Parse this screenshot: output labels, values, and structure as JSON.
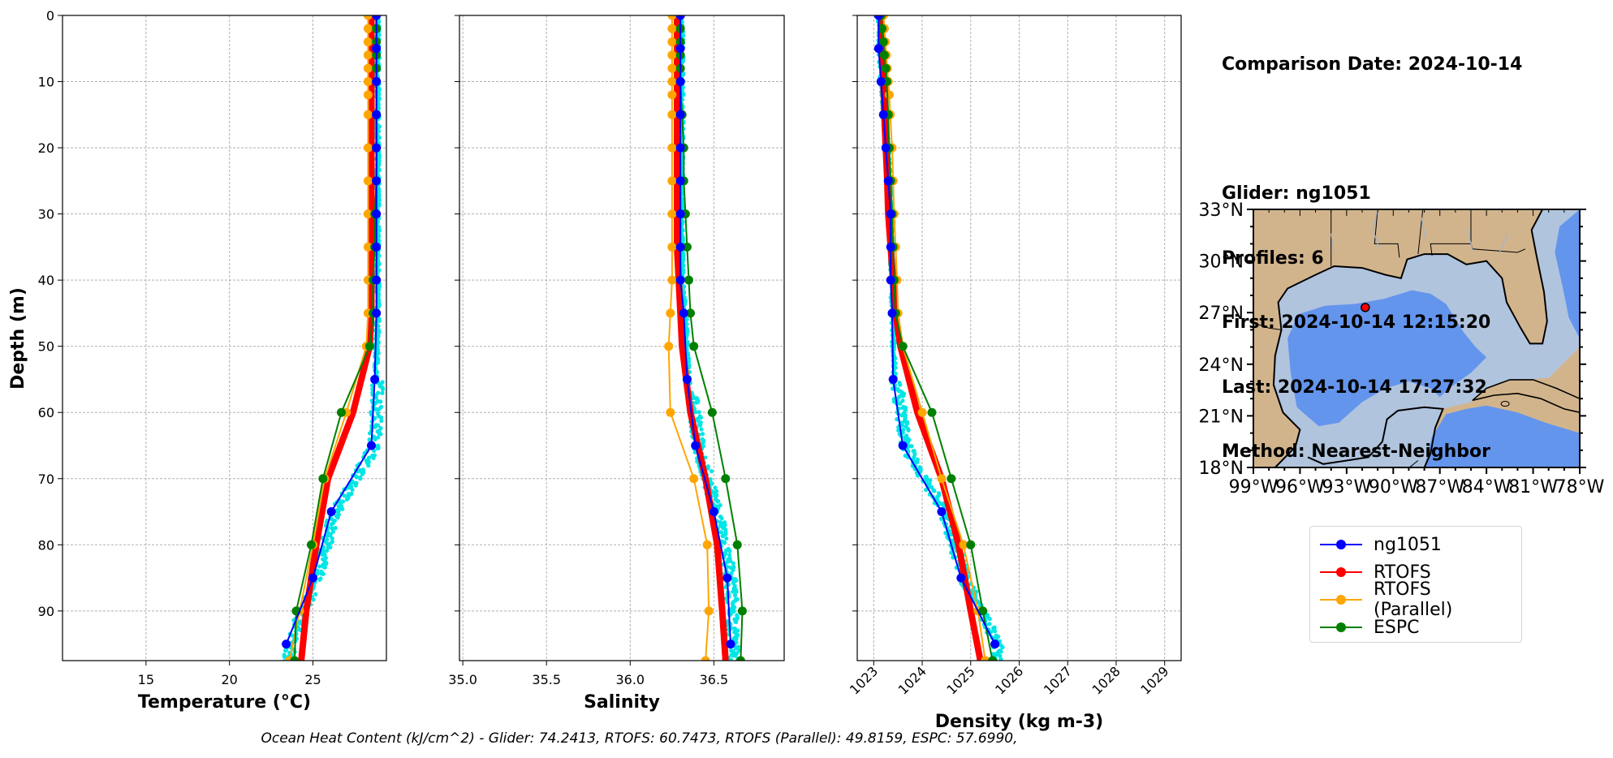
{
  "chart_data": [
    {
      "type": "line",
      "xlabel": "Temperature (°C)",
      "ylabel": "Depth (m)",
      "xlim": [
        10,
        29.4
      ],
      "ylim": [
        97.5,
        0
      ],
      "xticks": [
        "15",
        "20",
        "25"
      ],
      "yticks": [
        "0",
        "10",
        "20",
        "30",
        "40",
        "50",
        "60",
        "70",
        "80",
        "90"
      ],
      "grid": true,
      "series": [
        {
          "name": "ng1051",
          "depth": [
            0,
            5,
            10,
            15,
            20,
            25,
            30,
            35,
            40,
            45,
            55,
            65,
            75,
            85,
            95
          ],
          "values": [
            28.8,
            28.8,
            28.8,
            28.8,
            28.8,
            28.8,
            28.8,
            28.8,
            28.8,
            28.8,
            28.7,
            28.5,
            26.1,
            25.0,
            23.4
          ]
        },
        {
          "name": "RTOFS",
          "depth": [
            0,
            5,
            10,
            15,
            20,
            25,
            30,
            35,
            40,
            45,
            50,
            60,
            70,
            80,
            90,
            97.5
          ],
          "values": [
            28.5,
            28.5,
            28.5,
            28.5,
            28.5,
            28.5,
            28.5,
            28.5,
            28.5,
            28.5,
            28.4,
            27.4,
            25.9,
            25.2,
            24.6,
            24.3
          ]
        },
        {
          "name": "RTOFS (Parallel)",
          "depth": [
            0,
            2,
            4,
            6,
            8,
            10,
            12,
            15,
            20,
            25,
            30,
            35,
            40,
            45,
            50,
            60,
            70,
            80,
            90,
            97.5
          ],
          "values": [
            28.3,
            28.3,
            28.3,
            28.3,
            28.3,
            28.3,
            28.3,
            28.3,
            28.3,
            28.3,
            28.3,
            28.3,
            28.3,
            28.3,
            28.2,
            27.0,
            25.7,
            25.0,
            24.2,
            23.6
          ]
        },
        {
          "name": "ESPC",
          "depth": [
            0,
            2,
            4,
            6,
            8,
            10,
            15,
            20,
            25,
            30,
            35,
            40,
            45,
            50,
            60,
            70,
            80,
            90,
            97.5
          ],
          "values": [
            28.8,
            28.8,
            28.8,
            28.8,
            28.8,
            28.8,
            28.8,
            28.8,
            28.8,
            28.7,
            28.7,
            28.6,
            28.6,
            28.4,
            26.7,
            25.6,
            24.9,
            24.0,
            23.9
          ]
        }
      ]
    },
    {
      "type": "line",
      "xlabel": "Salinity",
      "ylabel": "",
      "xlim": [
        34.98,
        36.92
      ],
      "ylim": [
        97.5,
        0
      ],
      "xticks": [
        "35.0",
        "35.5",
        "36.0",
        "36.5"
      ],
      "grid": true,
      "series": [
        {
          "name": "ng1051",
          "depth": [
            0,
            5,
            10,
            15,
            20,
            25,
            30,
            35,
            40,
            45,
            55,
            65,
            75,
            85,
            95
          ],
          "values": [
            36.3,
            36.3,
            36.3,
            36.3,
            36.3,
            36.3,
            36.3,
            36.3,
            36.3,
            36.32,
            36.34,
            36.39,
            36.5,
            36.58,
            36.6
          ]
        },
        {
          "name": "RTOFS",
          "depth": [
            0,
            5,
            10,
            15,
            20,
            25,
            30,
            35,
            40,
            45,
            50,
            60,
            70,
            80,
            90,
            97.5
          ],
          "values": [
            36.28,
            36.28,
            36.28,
            36.28,
            36.28,
            36.28,
            36.28,
            36.28,
            36.29,
            36.3,
            36.31,
            36.36,
            36.45,
            36.52,
            36.55,
            36.57
          ]
        },
        {
          "name": "RTOFS (Parallel)",
          "depth": [
            0,
            2,
            4,
            6,
            8,
            10,
            12,
            15,
            20,
            25,
            30,
            35,
            40,
            45,
            50,
            60,
            70,
            80,
            90,
            97.5
          ],
          "values": [
            36.25,
            36.25,
            36.25,
            36.25,
            36.25,
            36.25,
            36.25,
            36.25,
            36.25,
            36.25,
            36.25,
            36.25,
            36.25,
            36.24,
            36.23,
            36.24,
            36.38,
            36.46,
            36.47,
            36.45
          ]
        },
        {
          "name": "ESPC",
          "depth": [
            0,
            2,
            4,
            6,
            8,
            10,
            15,
            20,
            25,
            30,
            35,
            40,
            45,
            50,
            60,
            70,
            80,
            90,
            97.5
          ],
          "values": [
            36.3,
            36.3,
            36.3,
            36.3,
            36.3,
            36.3,
            36.31,
            36.32,
            36.32,
            36.33,
            36.34,
            36.35,
            36.36,
            36.38,
            36.49,
            36.57,
            36.64,
            36.67,
            36.66
          ]
        }
      ]
    },
    {
      "type": "line",
      "xlabel": "Density (kg m-3)",
      "ylabel": "",
      "xlim": [
        1022.66,
        1029.34
      ],
      "ylim": [
        97.5,
        0
      ],
      "xticks": [
        "1023",
        "1024",
        "1025",
        "1026",
        "1027",
        "1028",
        "1029"
      ],
      "grid": true,
      "series": [
        {
          "name": "ng1051",
          "depth": [
            0,
            5,
            10,
            15,
            20,
            25,
            30,
            35,
            40,
            45,
            55,
            65,
            75,
            85,
            95
          ],
          "values": [
            1023.1,
            1023.1,
            1023.15,
            1023.2,
            1023.25,
            1023.3,
            1023.35,
            1023.35,
            1023.35,
            1023.38,
            1023.4,
            1023.6,
            1024.4,
            1024.8,
            1025.5
          ]
        },
        {
          "name": "RTOFS",
          "depth": [
            0,
            5,
            10,
            15,
            20,
            25,
            30,
            35,
            40,
            45,
            50,
            60,
            70,
            80,
            90,
            97.5
          ],
          "values": [
            1023.15,
            1023.18,
            1023.2,
            1023.22,
            1023.25,
            1023.28,
            1023.3,
            1023.35,
            1023.4,
            1023.45,
            1023.55,
            1023.9,
            1024.4,
            1024.75,
            1025.0,
            1025.2
          ]
        },
        {
          "name": "RTOFS (Parallel)",
          "depth": [
            0,
            2,
            4,
            6,
            8,
            10,
            12,
            15,
            20,
            25,
            30,
            35,
            40,
            45,
            50,
            60,
            70,
            80,
            90,
            97.5
          ],
          "values": [
            1023.2,
            1023.22,
            1023.24,
            1023.26,
            1023.28,
            1023.3,
            1023.32,
            1023.34,
            1023.38,
            1023.4,
            1023.42,
            1023.45,
            1023.48,
            1023.5,
            1023.6,
            1024.0,
            1024.4,
            1024.85,
            1025.15,
            1025.3
          ]
        },
        {
          "name": "ESPC",
          "depth": [
            0,
            2,
            4,
            6,
            8,
            10,
            15,
            20,
            25,
            30,
            35,
            40,
            45,
            50,
            60,
            70,
            80,
            90,
            97.5
          ],
          "values": [
            1023.15,
            1023.17,
            1023.2,
            1023.22,
            1023.25,
            1023.27,
            1023.3,
            1023.32,
            1023.35,
            1023.38,
            1023.4,
            1023.42,
            1023.45,
            1023.6,
            1024.2,
            1024.6,
            1025.0,
            1025.25,
            1025.45
          ]
        }
      ]
    }
  ],
  "colors": {
    "ng1051": "#0000ff",
    "RTOFS": "#ff0000",
    "RTOFS (Parallel)": "#ffa500",
    "ESPC": "#008000",
    "glider_scatter": "#00e5e5",
    "land": "#d2b48c",
    "deep_water": "#6495ed",
    "shelf_water": "#b0c4de"
  },
  "info": {
    "comparison_date": "Comparison Date: 2024-10-14",
    "glider": "Glider: ng1051",
    "profiles": "Profiles: 6",
    "first": "First: 2024-10-14 12:15:20",
    "last": "Last: 2024-10-14 17:27:32",
    "method": "Method: Nearest-Neighbor"
  },
  "map": {
    "lat_labels": [
      "33°N",
      "30°N",
      "27°N",
      "24°N",
      "21°N",
      "18°N"
    ],
    "lon_labels": [
      "99°W",
      "96°W",
      "93°W",
      "90°W",
      "87°W",
      "84°W",
      "81°W",
      "78°W"
    ],
    "lon_range": [
      -99,
      -78
    ],
    "lat_range": [
      18,
      33
    ],
    "glider_position": {
      "lon": -91.8,
      "lat": 27.3
    }
  },
  "legend": {
    "items": [
      {
        "label": "ng1051",
        "color": "#0000ff"
      },
      {
        "label": "RTOFS",
        "color": "#ff0000"
      },
      {
        "label": "RTOFS (Parallel)",
        "color": "#ffa500"
      },
      {
        "label": "ESPC",
        "color": "#008000"
      }
    ]
  },
  "footer": "Ocean Heat Content (kJ/cm^2) - Glider: 74.2413,  RTOFS: 60.7473,  RTOFS (Parallel): 49.8159,  ESPC: 57.6990,"
}
